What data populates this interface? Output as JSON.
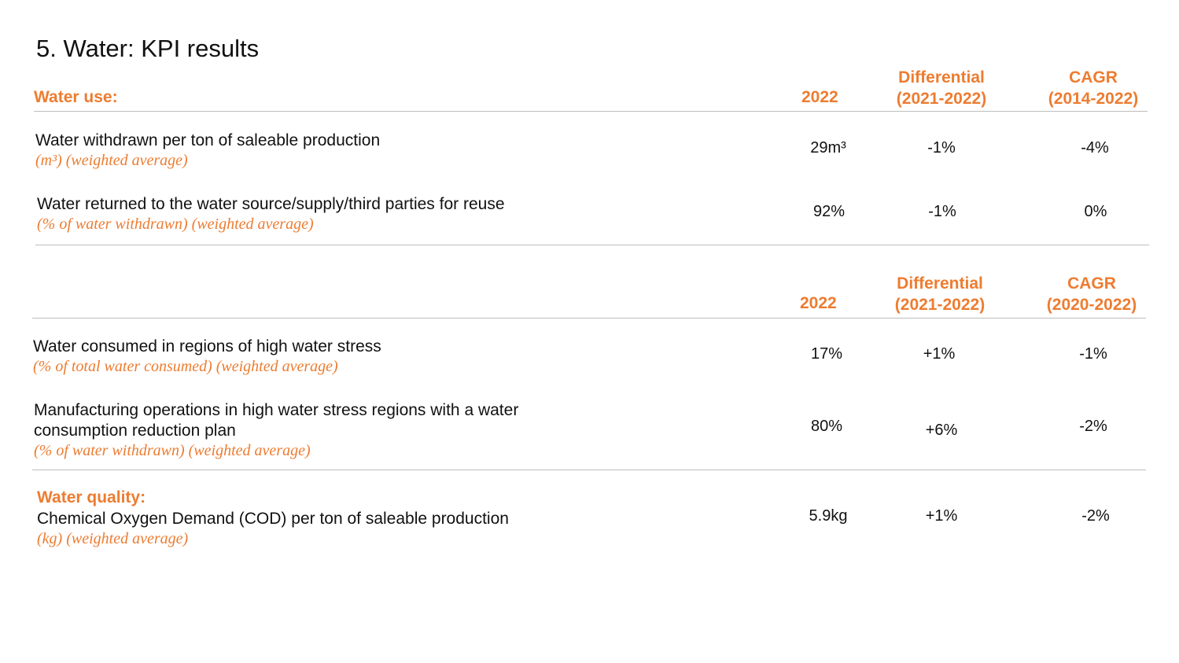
{
  "title": "5. Water: KPI results",
  "accent_color": "#ED7C30",
  "section1": {
    "heading": "Water use:",
    "col_year": "2022",
    "col_diff": [
      "Differential",
      "(2021-2022)"
    ],
    "col_cagr": [
      "CAGR",
      "(2014-2022)"
    ],
    "rows": [
      {
        "label": "Water withdrawn per ton of saleable production",
        "sub": "(m³) (weighted average)",
        "value": "29m³",
        "diff": "-1%",
        "cagr": "-4%"
      },
      {
        "label": "Water returned to the water source/supply/third parties for reuse",
        "sub": "(% of water withdrawn) (weighted average)",
        "value": "92%",
        "diff": "-1%",
        "cagr": "0%"
      }
    ]
  },
  "section2": {
    "col_year": "2022",
    "col_diff": [
      "Differential",
      "(2021-2022)"
    ],
    "col_cagr": [
      "CAGR",
      "(2020-2022)"
    ],
    "rows": [
      {
        "label": "Water consumed in regions of high water stress",
        "sub": "(% of total water consumed) (weighted average)",
        "value": "17%",
        "diff": "+1%",
        "cagr": "-1%"
      },
      {
        "label": [
          "Manufacturing operations in high water stress regions with a water",
          "consumption reduction plan"
        ],
        "sub": "(% of water withdrawn) (weighted average)",
        "value": "80%",
        "diff": "+6%",
        "cagr": "-2%"
      }
    ]
  },
  "section3": {
    "heading": "Water quality:",
    "rows": [
      {
        "label": "Chemical Oxygen Demand (COD) per ton of saleable production",
        "sub": "(kg) (weighted average)",
        "value": "5.9kg",
        "diff": "+1%",
        "cagr": "-2%"
      }
    ]
  }
}
